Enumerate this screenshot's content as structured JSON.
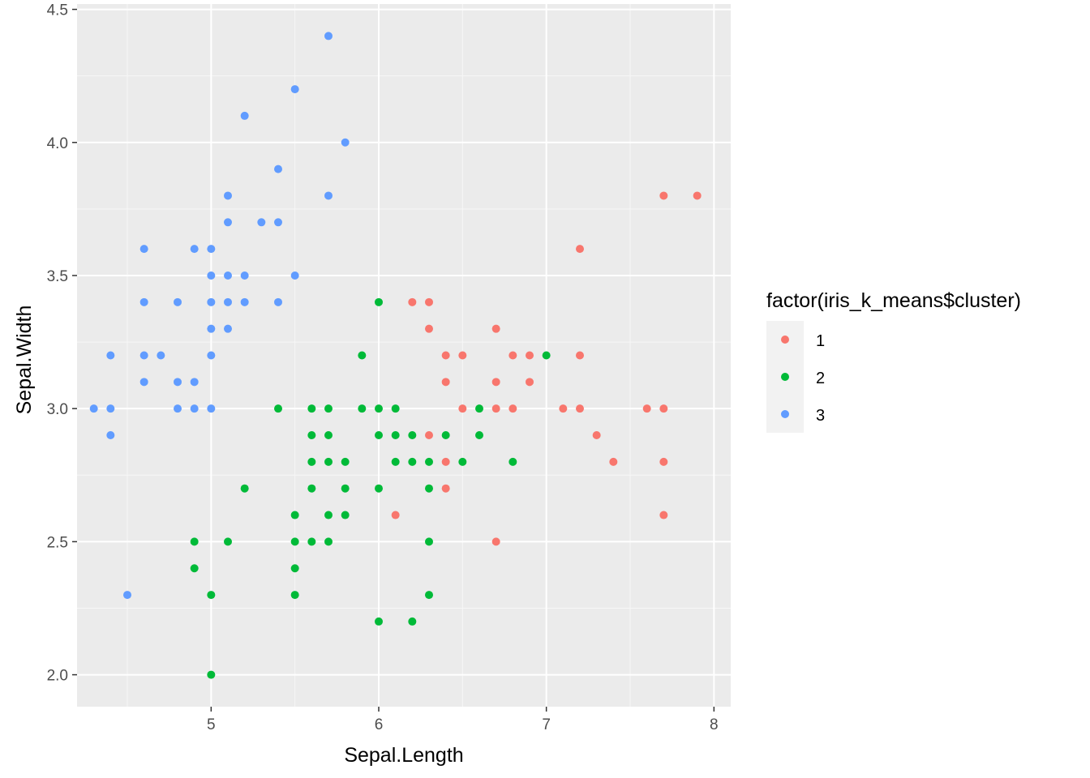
{
  "chart_data": {
    "type": "scatter",
    "title": "",
    "xlabel": "Sepal.Length",
    "ylabel": "Sepal.Width",
    "xlim": [
      4.2,
      8.1
    ],
    "ylim": [
      1.88,
      4.52
    ],
    "xticks": [
      5,
      6,
      7,
      8
    ],
    "xtick_labels": [
      "5",
      "6",
      "7",
      "8"
    ],
    "yticks": [
      2.0,
      2.5,
      3.0,
      3.5,
      4.0,
      4.5
    ],
    "ytick_labels": [
      "2.0",
      "2.5",
      "3.0",
      "3.5",
      "4.0",
      "4.5"
    ],
    "grid": true,
    "legend": {
      "title": "factor(iris_k_means$cluster)",
      "placement": "right",
      "entries": [
        {
          "label": "1",
          "color": "#F8766D"
        },
        {
          "label": "2",
          "color": "#00BA38"
        },
        {
          "label": "3",
          "color": "#619CFF"
        }
      ]
    },
    "series": [
      {
        "name": "1",
        "color": "#F8766D",
        "points": [
          [
            6.2,
            3.4
          ],
          [
            6.3,
            3.4
          ],
          [
            6.3,
            3.3
          ],
          [
            6.4,
            3.2
          ],
          [
            6.5,
            3.2
          ],
          [
            6.4,
            3.1
          ],
          [
            6.5,
            3.0
          ],
          [
            6.3,
            2.9
          ],
          [
            6.4,
            2.8
          ],
          [
            6.4,
            2.7
          ],
          [
            6.1,
            2.6
          ],
          [
            6.7,
            3.3
          ],
          [
            6.7,
            3.1
          ],
          [
            6.7,
            3.0
          ],
          [
            6.8,
            3.2
          ],
          [
            6.8,
            3.0
          ],
          [
            6.9,
            3.2
          ],
          [
            6.9,
            3.1
          ],
          [
            6.7,
            2.5
          ],
          [
            7.1,
            3.0
          ],
          [
            7.2,
            3.6
          ],
          [
            7.2,
            3.2
          ],
          [
            7.2,
            3.0
          ],
          [
            7.3,
            2.9
          ],
          [
            7.4,
            2.8
          ],
          [
            7.6,
            3.0
          ],
          [
            7.7,
            3.8
          ],
          [
            7.7,
            3.0
          ],
          [
            7.7,
            2.8
          ],
          [
            7.7,
            2.6
          ],
          [
            7.9,
            3.8
          ]
        ]
      },
      {
        "name": "2",
        "color": "#00BA38",
        "points": [
          [
            6.0,
            3.4
          ],
          [
            5.9,
            3.2
          ],
          [
            7.0,
            3.2
          ],
          [
            5.4,
            3.0
          ],
          [
            5.6,
            3.0
          ],
          [
            5.7,
            3.0
          ],
          [
            5.9,
            3.0
          ],
          [
            6.0,
            3.0
          ],
          [
            6.1,
            3.0
          ],
          [
            6.6,
            3.0
          ],
          [
            5.6,
            2.9
          ],
          [
            5.7,
            2.9
          ],
          [
            6.0,
            2.9
          ],
          [
            6.1,
            2.9
          ],
          [
            6.2,
            2.9
          ],
          [
            6.4,
            2.9
          ],
          [
            6.6,
            2.9
          ],
          [
            5.6,
            2.8
          ],
          [
            5.7,
            2.8
          ],
          [
            5.8,
            2.8
          ],
          [
            6.1,
            2.8
          ],
          [
            6.2,
            2.8
          ],
          [
            6.3,
            2.8
          ],
          [
            6.5,
            2.8
          ],
          [
            6.8,
            2.8
          ],
          [
            5.2,
            2.7
          ],
          [
            5.6,
            2.7
          ],
          [
            5.8,
            2.7
          ],
          [
            6.0,
            2.7
          ],
          [
            6.3,
            2.7
          ],
          [
            5.5,
            2.6
          ],
          [
            5.7,
            2.6
          ],
          [
            5.8,
            2.6
          ],
          [
            4.9,
            2.5
          ],
          [
            5.1,
            2.5
          ],
          [
            5.5,
            2.5
          ],
          [
            5.6,
            2.5
          ],
          [
            5.7,
            2.5
          ],
          [
            6.3,
            2.5
          ],
          [
            4.9,
            2.4
          ],
          [
            5.5,
            2.4
          ],
          [
            5.0,
            2.3
          ],
          [
            5.5,
            2.3
          ],
          [
            6.3,
            2.3
          ],
          [
            6.0,
            2.2
          ],
          [
            6.2,
            2.2
          ],
          [
            5.0,
            2.0
          ]
        ]
      },
      {
        "name": "3",
        "color": "#619CFF",
        "points": [
          [
            5.7,
            4.4
          ],
          [
            5.5,
            4.2
          ],
          [
            5.2,
            4.1
          ],
          [
            5.8,
            4.0
          ],
          [
            5.4,
            3.9
          ],
          [
            5.1,
            3.8
          ],
          [
            5.7,
            3.8
          ],
          [
            5.1,
            3.7
          ],
          [
            5.3,
            3.7
          ],
          [
            5.4,
            3.7
          ],
          [
            4.6,
            3.6
          ],
          [
            4.9,
            3.6
          ],
          [
            5.0,
            3.6
          ],
          [
            5.0,
            3.5
          ],
          [
            5.1,
            3.5
          ],
          [
            5.2,
            3.5
          ],
          [
            5.5,
            3.5
          ],
          [
            4.6,
            3.4
          ],
          [
            4.8,
            3.4
          ],
          [
            5.0,
            3.4
          ],
          [
            5.1,
            3.4
          ],
          [
            5.2,
            3.4
          ],
          [
            5.4,
            3.4
          ],
          [
            5.0,
            3.3
          ],
          [
            5.1,
            3.3
          ],
          [
            4.4,
            3.2
          ],
          [
            4.6,
            3.2
          ],
          [
            4.7,
            3.2
          ],
          [
            5.0,
            3.2
          ],
          [
            4.6,
            3.1
          ],
          [
            4.8,
            3.1
          ],
          [
            4.9,
            3.1
          ],
          [
            4.3,
            3.0
          ],
          [
            4.4,
            3.0
          ],
          [
            4.8,
            3.0
          ],
          [
            4.9,
            3.0
          ],
          [
            5.0,
            3.0
          ],
          [
            4.4,
            2.9
          ],
          [
            4.5,
            2.3
          ]
        ]
      }
    ]
  }
}
